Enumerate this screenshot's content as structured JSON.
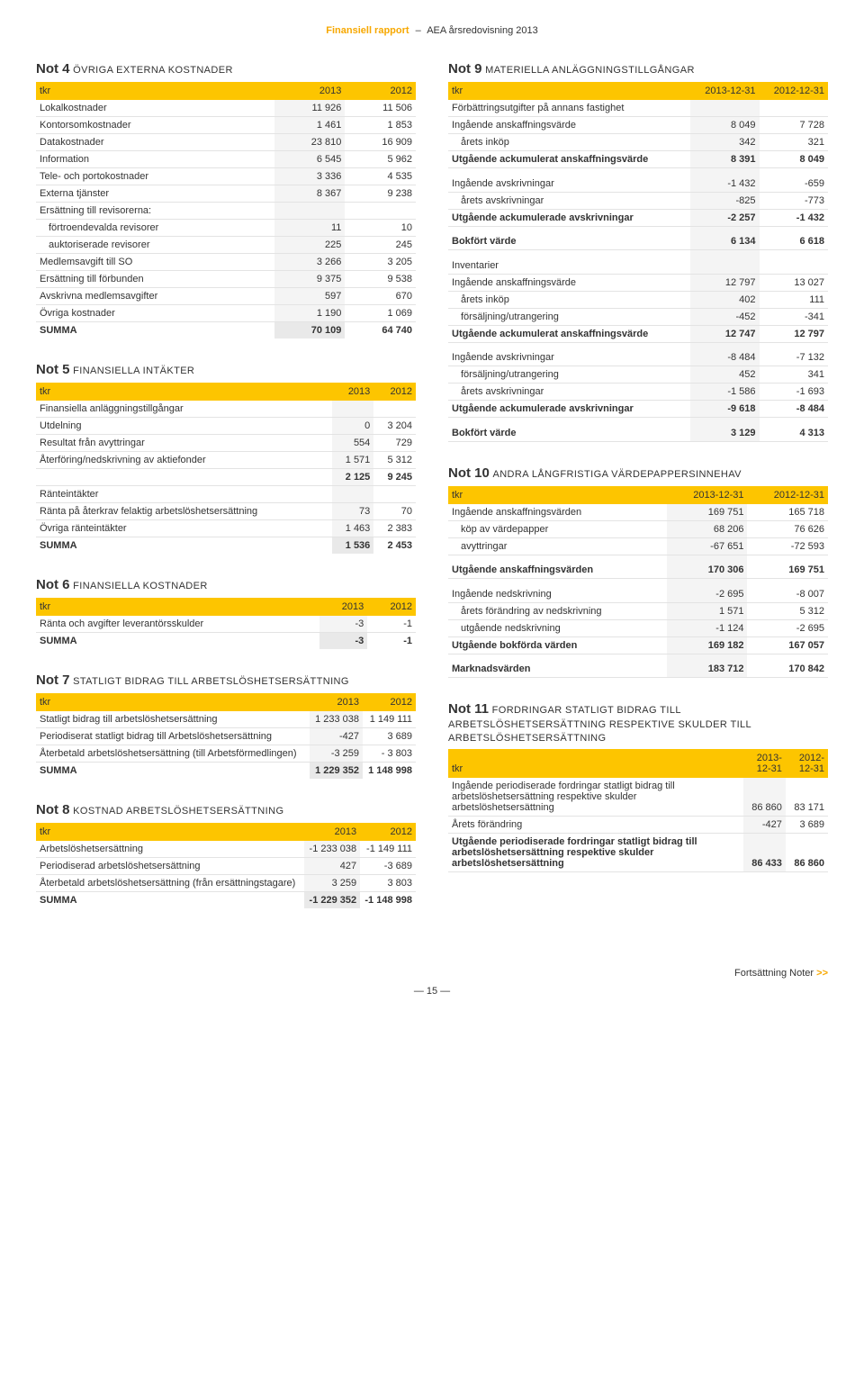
{
  "header": {
    "left": "Finansiell rapport",
    "right": "AEA årsredovisning 2013"
  },
  "col_headers": {
    "tkr": "tkr",
    "y2013": "2013",
    "y2012": "2012",
    "d2013": "2013-12-31",
    "d2012": "2012-12-31"
  },
  "footer": {
    "cont": "Fortsättning Noter",
    "page": "— 15 —"
  },
  "notes": {
    "n4": {
      "num": "Not 4",
      "cap": "ÖVRIGA EXTERNA KOSTNADER",
      "rows": [
        {
          "l": "Lokalkostnader",
          "a": "11 926",
          "b": "11 506"
        },
        {
          "l": "Kontorsomkostnader",
          "a": "1 461",
          "b": "1 853"
        },
        {
          "l": "Datakostnader",
          "a": "23 810",
          "b": "16 909"
        },
        {
          "l": "Information",
          "a": "6 545",
          "b": "5 962"
        },
        {
          "l": "Tele- och portokostnader",
          "a": "3 336",
          "b": "4 535"
        },
        {
          "l": "Externa tjänster",
          "a": "8 367",
          "b": "9 238"
        },
        {
          "l": "Ersättning till revisorerna:",
          "a": "",
          "b": ""
        },
        {
          "l": "förtroendevalda revisorer",
          "a": "11",
          "b": "10",
          "indent": true
        },
        {
          "l": "auktoriserade revisorer",
          "a": "225",
          "b": "245",
          "indent": true
        },
        {
          "l": "Medlemsavgift till SO",
          "a": "3 266",
          "b": "3 205"
        },
        {
          "l": "Ersättning till förbunden",
          "a": "9 375",
          "b": "9 538"
        },
        {
          "l": "Avskrivna medlemsavgifter",
          "a": "597",
          "b": "670"
        },
        {
          "l": "Övriga kostnader",
          "a": "1 190",
          "b": "1 069"
        }
      ],
      "sum": {
        "l": "SUMMA",
        "a": "70 109",
        "b": "64 740"
      }
    },
    "n5": {
      "num": "Not 5",
      "cap": "FINANSIELLA INTÄKTER",
      "rows": [
        {
          "l": "Finansiella anläggningstillgångar",
          "a": "",
          "b": ""
        },
        {
          "l": "Utdelning",
          "a": "0",
          "b": "3 204"
        },
        {
          "l": "Resultat från avyttringar",
          "a": "554",
          "b": "729"
        },
        {
          "l": "Återföring/nedskrivning av aktiefonder",
          "a": "1 571",
          "b": "5 312"
        },
        {
          "l": "",
          "a": "2 125",
          "b": "9 245",
          "bold": true
        },
        {
          "l": "Ränteintäkter",
          "a": "",
          "b": ""
        },
        {
          "l": "Ränta på återkrav felaktig arbetslöshetsersättning",
          "a": "73",
          "b": "70"
        },
        {
          "l": "Övriga ränteintäkter",
          "a": "1 463",
          "b": "2 383"
        }
      ],
      "sum": {
        "l": "SUMMA",
        "a": "1 536",
        "b": "2 453"
      }
    },
    "n6": {
      "num": "Not 6",
      "cap": "FINANSIELLA KOSTNADER",
      "rows": [
        {
          "l": "Ränta och avgifter leverantörsskulder",
          "a": "-3",
          "b": "-1"
        }
      ],
      "sum": {
        "l": "SUMMA",
        "a": "-3",
        "b": "-1"
      }
    },
    "n7": {
      "num": "Not 7",
      "cap": "STATLIGT BIDRAG TILL ARBETSLÖSHETSERSÄTTNING",
      "rows": [
        {
          "l": "Statligt bidrag till arbetslöshetsersättning",
          "a": "1 233 038",
          "b": "1 149 111"
        },
        {
          "l": "Periodiserat statligt bidrag till Arbetslöshetsersättning",
          "a": "-427",
          "b": "3 689"
        },
        {
          "l": "Återbetald arbetslöshetsersättning (till Arbetsförmedlingen)",
          "a": "-3 259",
          "b": "- 3 803"
        }
      ],
      "sum": {
        "l": "SUMMA",
        "a": "1 229 352",
        "b": "1 148 998"
      }
    },
    "n8": {
      "num": "Not 8",
      "cap": "KOSTNAD ARBETSLÖSHETSERSÄTTNING",
      "rows": [
        {
          "l": "Arbetslöshetsersättning",
          "a": "-1 233 038",
          "b": "-1 149 111"
        },
        {
          "l": "Periodiserad arbetslöshetsersättning",
          "a": "427",
          "b": "-3 689"
        },
        {
          "l": "Återbetald arbetslöshetsersättning (från ersättningstagare)",
          "a": "3 259",
          "b": "3 803"
        }
      ],
      "sum": {
        "l": "SUMMA",
        "a": "-1 229 352",
        "b": "-1 148 998"
      }
    },
    "n9": {
      "num": "Not 9",
      "cap": "MATERIELLA ANLÄGGNINGSTILLGÅNGAR",
      "rows": [
        {
          "l": "Förbättringsutgifter på annans fastighet",
          "a": "",
          "b": ""
        },
        {
          "l": "Ingående anskaffningsvärde",
          "a": "8 049",
          "b": "7 728"
        },
        {
          "l": "årets inköp",
          "a": "342",
          "b": "321",
          "indent": true
        },
        {
          "l": "Utgående ackumulerat anskaffningsvärde",
          "a": "8 391",
          "b": "8 049",
          "bold": true
        },
        {
          "l": "",
          "a": "",
          "b": "",
          "spacer": true
        },
        {
          "l": "Ingående avskrivningar",
          "a": "-1 432",
          "b": "-659"
        },
        {
          "l": "årets avskrivningar",
          "a": "-825",
          "b": "-773",
          "indent": true
        },
        {
          "l": "Utgående ackumulerade avskrivningar",
          "a": "-2 257",
          "b": "-1 432",
          "bold": true
        },
        {
          "l": "",
          "a": "",
          "b": "",
          "spacer": true
        },
        {
          "l": "Bokfört värde",
          "a": "6 134",
          "b": "6 618",
          "bold": true
        },
        {
          "l": "",
          "a": "",
          "b": "",
          "spacer": true
        },
        {
          "l": "Inventarier",
          "a": "",
          "b": ""
        },
        {
          "l": "Ingående anskaffningsvärde",
          "a": "12 797",
          "b": "13 027"
        },
        {
          "l": "årets inköp",
          "a": "402",
          "b": "111",
          "indent": true
        },
        {
          "l": "försäljning/utrangering",
          "a": "-452",
          "b": "-341",
          "indent": true
        },
        {
          "l": "Utgående ackumulerat anskaffningsvärde",
          "a": "12 747",
          "b": "12 797",
          "bold": true
        },
        {
          "l": "",
          "a": "",
          "b": "",
          "spacer": true
        },
        {
          "l": "Ingående avskrivningar",
          "a": "-8 484",
          "b": "-7 132"
        },
        {
          "l": "försäljning/utrangering",
          "a": "452",
          "b": "341",
          "indent": true
        },
        {
          "l": "årets avskrivningar",
          "a": "-1 586",
          "b": "-1 693",
          "indent": true
        },
        {
          "l": "Utgående ackumulerade avskrivningar",
          "a": "-9 618",
          "b": "-8 484",
          "bold": true
        },
        {
          "l": "",
          "a": "",
          "b": "",
          "spacer": true
        },
        {
          "l": "Bokfört värde",
          "a": "3 129",
          "b": "4 313",
          "bold": true
        }
      ]
    },
    "n10": {
      "num": "Not 10",
      "cap": "ANDRA LÅNGFRISTIGA VÄRDEPAPPERSINNEHAV",
      "rows": [
        {
          "l": "Ingående anskaffningsvärden",
          "a": "169 751",
          "b": "165 718"
        },
        {
          "l": "köp av värdepapper",
          "a": "68 206",
          "b": "76 626",
          "indent": true
        },
        {
          "l": "avyttringar",
          "a": "-67 651",
          "b": "-72 593",
          "indent": true
        },
        {
          "l": "",
          "a": "",
          "b": "",
          "spacer": true
        },
        {
          "l": "Utgående anskaffningsvärden",
          "a": "170 306",
          "b": "169 751",
          "bold": true
        },
        {
          "l": "",
          "a": "",
          "b": "",
          "spacer": true
        },
        {
          "l": "Ingående nedskrivning",
          "a": "-2 695",
          "b": "-8 007"
        },
        {
          "l": "årets förändring av nedskrivning",
          "a": "1 571",
          "b": "5 312",
          "indent": true
        },
        {
          "l": "utgående nedskrivning",
          "a": "-1 124",
          "b": "-2 695",
          "indent": true
        },
        {
          "l": "Utgående bokförda värden",
          "a": "169 182",
          "b": "167 057",
          "bold": true
        },
        {
          "l": "",
          "a": "",
          "b": "",
          "spacer": true
        },
        {
          "l": "Marknadsvärden",
          "a": "183 712",
          "b": "170 842",
          "bold": true
        }
      ]
    },
    "n11": {
      "num": "Not 11",
      "cap": "FORDRINGAR STATLIGT BIDRAG TILL ARBETSLÖSHETSERSÄTTNING RESPEKTIVE SKULDER TILL ARBETSLÖSHETSERSÄTTNING",
      "rows": [
        {
          "l": "Ingående periodiserade fordringar statligt bidrag till arbetslöshetsersättning respektive skulder arbetslöshetsersättning",
          "a": "86 860",
          "b": "83 171"
        },
        {
          "l": "Årets förändring",
          "a": "-427",
          "b": "3 689"
        },
        {
          "l": "Utgående periodiserade fordringar statligt bidrag till arbetslöshetsersättning respektive skulder arbetslöshetsersättning",
          "a": "86 433",
          "b": "86 860",
          "bold": true
        }
      ]
    }
  }
}
